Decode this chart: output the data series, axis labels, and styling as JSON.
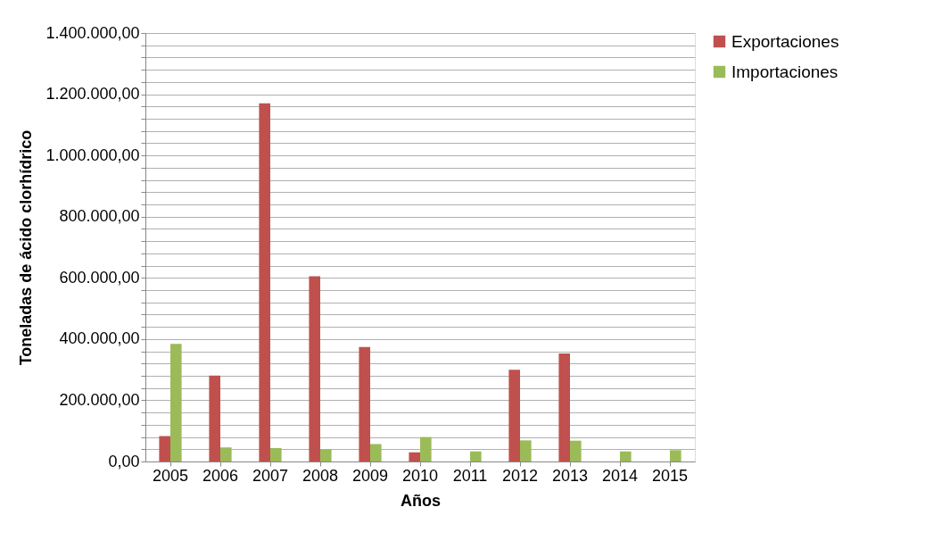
{
  "chart_data": {
    "type": "bar",
    "xlabel": "Años",
    "ylabel": "Toneladas de ácido clorhídrico",
    "categories": [
      "2005",
      "2006",
      "2007",
      "2008",
      "2009",
      "2010",
      "2011",
      "2012",
      "2013",
      "2014",
      "2015"
    ],
    "series": [
      {
        "name": "Exportaciones",
        "color": "#c0504d",
        "values": [
          83000,
          281000,
          1170000,
          605000,
          374000,
          30000,
          null,
          300000,
          353000,
          0,
          null
        ]
      },
      {
        "name": "Importaciones",
        "color": "#9bbb59",
        "values": [
          384000,
          46000,
          44000,
          40000,
          57000,
          80000,
          33000,
          69000,
          68000,
          33000,
          37000
        ]
      }
    ],
    "ylim": [
      0,
      1400000
    ],
    "yticks": [
      {
        "value": 0,
        "label": "0,00"
      },
      {
        "value": 40000,
        "label": null
      },
      {
        "value": 80000,
        "label": null
      },
      {
        "value": 120000,
        "label": null
      },
      {
        "value": 160000,
        "label": null
      },
      {
        "value": 200000,
        "label": "200.000,00"
      },
      {
        "value": 240000,
        "label": null
      },
      {
        "value": 280000,
        "label": null
      },
      {
        "value": 320000,
        "label": null
      },
      {
        "value": 360000,
        "label": null
      },
      {
        "value": 400000,
        "label": "400.000,00"
      },
      {
        "value": 440000,
        "label": null
      },
      {
        "value": 480000,
        "label": null
      },
      {
        "value": 520000,
        "label": null
      },
      {
        "value": 560000,
        "label": null
      },
      {
        "value": 600000,
        "label": "600.000,00"
      },
      {
        "value": 640000,
        "label": null
      },
      {
        "value": 680000,
        "label": null
      },
      {
        "value": 720000,
        "label": null
      },
      {
        "value": 760000,
        "label": null
      },
      {
        "value": 800000,
        "label": "800.000,00"
      },
      {
        "value": 840000,
        "label": null
      },
      {
        "value": 880000,
        "label": null
      },
      {
        "value": 920000,
        "label": null
      },
      {
        "value": 960000,
        "label": null
      },
      {
        "value": 1000000,
        "label": "1.000.000,00"
      },
      {
        "value": 1040000,
        "label": null
      },
      {
        "value": 1080000,
        "label": null
      },
      {
        "value": 1120000,
        "label": null
      },
      {
        "value": 1160000,
        "label": null
      },
      {
        "value": 1200000,
        "label": "1.200.000,00"
      },
      {
        "value": 1240000,
        "label": null
      },
      {
        "value": 1280000,
        "label": null
      },
      {
        "value": 1320000,
        "label": null
      },
      {
        "value": 1360000,
        "label": null
      },
      {
        "value": 1400000,
        "label": "1.400.000,00"
      }
    ],
    "grid": "y",
    "legend": "right"
  }
}
